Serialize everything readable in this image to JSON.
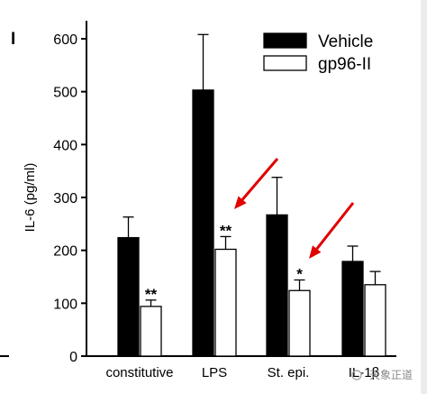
{
  "chart_data": {
    "type": "bar",
    "categories": [
      "constitutive",
      "LPS",
      "St. epi.",
      "IL-1β"
    ],
    "series": [
      {
        "name": "Vehicle",
        "color": "#000000",
        "values": [
          224,
          503,
          267,
          179
        ],
        "errors": [
          39,
          105,
          71,
          29
        ]
      },
      {
        "name": "gp96-II",
        "color": "#ffffff",
        "values": [
          94,
          202,
          124,
          135
        ],
        "errors": [
          12,
          24,
          20,
          25
        ]
      }
    ],
    "ylabel": "IL-6 (pg/ml)",
    "ylim": [
      0,
      600
    ],
    "yticks": [
      0,
      100,
      200,
      300,
      400,
      500,
      600
    ],
    "grid": false,
    "legend_position": "top-right",
    "annotations": [
      {
        "category": "constitutive",
        "series": "gp96-II",
        "text": "**"
      },
      {
        "category": "LPS",
        "series": "gp96-II",
        "text": "**"
      },
      {
        "category": "St. epi.",
        "series": "gp96-II",
        "text": "*"
      }
    ],
    "arrows": [
      {
        "target_category": "LPS",
        "target_series": "gp96-II",
        "color": "#e00000"
      },
      {
        "target_category": "St. epi.",
        "target_series": "gp96-II",
        "color": "#e00000"
      }
    ],
    "panel_letter": "I",
    "watermark": "天象正道"
  }
}
